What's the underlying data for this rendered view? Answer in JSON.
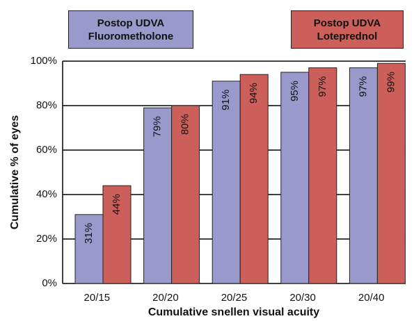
{
  "chart_data": {
    "type": "bar",
    "xlabel": "Cumulative snellen visual acuity",
    "ylabel": "Cumulative %  of eyes",
    "categories": [
      "20/15",
      "20/20",
      "20/25",
      "20/30",
      "20/40"
    ],
    "series": [
      {
        "name": "Postop UDVA Fluorometholone",
        "color": "#9999cc",
        "values": [
          31,
          79,
          91,
          95,
          97
        ],
        "value_labels": [
          "31%",
          "79%",
          "91%",
          "95%",
          "97%"
        ]
      },
      {
        "name": "Postop UDVA Loteprednol",
        "color": "#cc5f5a",
        "values": [
          44,
          80,
          94,
          97,
          99
        ],
        "value_labels": [
          "44%",
          "80%",
          "94%",
          "97%",
          "99%"
        ]
      }
    ],
    "ylim": [
      0,
      100
    ],
    "yticks": [
      {
        "value": 0,
        "label": "0%"
      },
      {
        "value": 20,
        "label": "20%"
      },
      {
        "value": 40,
        "label": "40%"
      },
      {
        "value": 60,
        "label": "60%"
      },
      {
        "value": 80,
        "label": "80%"
      },
      {
        "value": 100,
        "label": "100%"
      }
    ],
    "grid": true
  }
}
